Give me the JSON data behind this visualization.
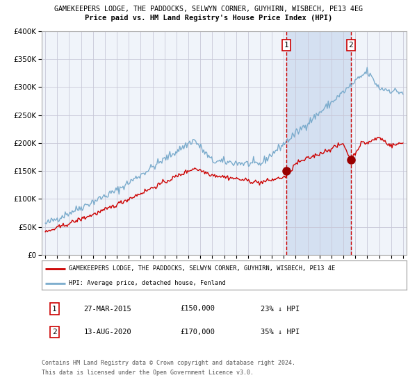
{
  "title1": "GAMEKEEPERS LODGE, THE PADDOCKS, SELWYN CORNER, GUYHIRN, WISBECH, PE13 4EG",
  "title2": "Price paid vs. HM Land Registry's House Price Index (HPI)",
  "legend_red": "GAMEKEEPERS LODGE, THE PADDOCKS, SELWYN CORNER, GUYHIRN, WISBECH, PE13 4E",
  "legend_blue": "HPI: Average price, detached house, Fenland",
  "annotation1_label": "1",
  "annotation1_date": "27-MAR-2015",
  "annotation1_price": "£150,000",
  "annotation1_hpi": "23% ↓ HPI",
  "annotation2_label": "2",
  "annotation2_date": "13-AUG-2020",
  "annotation2_price": "£170,000",
  "annotation2_hpi": "35% ↓ HPI",
  "footer1": "Contains HM Land Registry data © Crown copyright and database right 2024.",
  "footer2": "This data is licensed under the Open Government Licence v3.0.",
  "ylim": [
    0,
    400000
  ],
  "yticks": [
    0,
    50000,
    100000,
    150000,
    200000,
    250000,
    300000,
    350000,
    400000
  ],
  "background_color": "#ffffff",
  "plot_bg_color": "#f0f4fa",
  "shade_color": "#cddcef",
  "red_line_color": "#cc0000",
  "blue_line_color": "#7aabcc",
  "dashed_color": "#cc0000",
  "annotation_box_color": "#cc0000",
  "sale1_year": 2015.23,
  "sale1_value": 150000,
  "sale2_year": 2020.62,
  "sale2_value": 170000,
  "start_year": 1995,
  "end_year": 2025
}
